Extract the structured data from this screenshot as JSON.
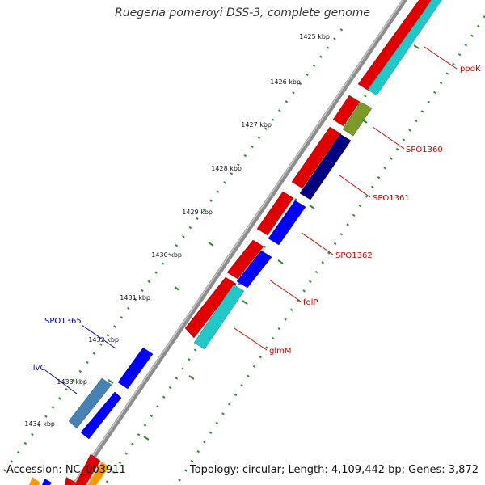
{
  "title": "Ruegeria pomeroyi DSS-3, complete genome",
  "footer": {
    "accession": "Accession: NC_003911",
    "summary": "Topology: circular; Length: 4,109,442 bp; Genes: 3,872"
  },
  "kbp_ticks": [
    "1425 kbp",
    "1426 kbp",
    "1427 kbp",
    "1428 kbp",
    "1429 kbp",
    "1430 kbp",
    "1431 kbp",
    "1432 kbp",
    "1433 kbp",
    "1434 kbp"
  ],
  "gene_labels": [
    {
      "text": "ppdK",
      "color": "#cc0000"
    },
    {
      "text": "SPO1360",
      "color": "#cc0000"
    },
    {
      "text": "SPO1361",
      "color": "#cc0000"
    },
    {
      "text": "SPO1362",
      "color": "#cc0000"
    },
    {
      "text": "folP",
      "color": "#cc0000"
    },
    {
      "text": "glmM",
      "color": "#cc0000"
    },
    {
      "text": "SPO1365",
      "color": "#0000cc"
    },
    {
      "text": "ilvC",
      "color": "#0000cc"
    }
  ],
  "colors": {
    "backbone": "#8c8c8c",
    "cds": "#ff0000",
    "gene_green": "#7a9a2a",
    "gene_cyan": "#22c8c8",
    "gene_navy": "#000080",
    "gene_blue": "#0000ff",
    "gene_steel": "#4682b4",
    "gene_orange": "#ff9900",
    "tick_dots": "#2e8b2e"
  }
}
